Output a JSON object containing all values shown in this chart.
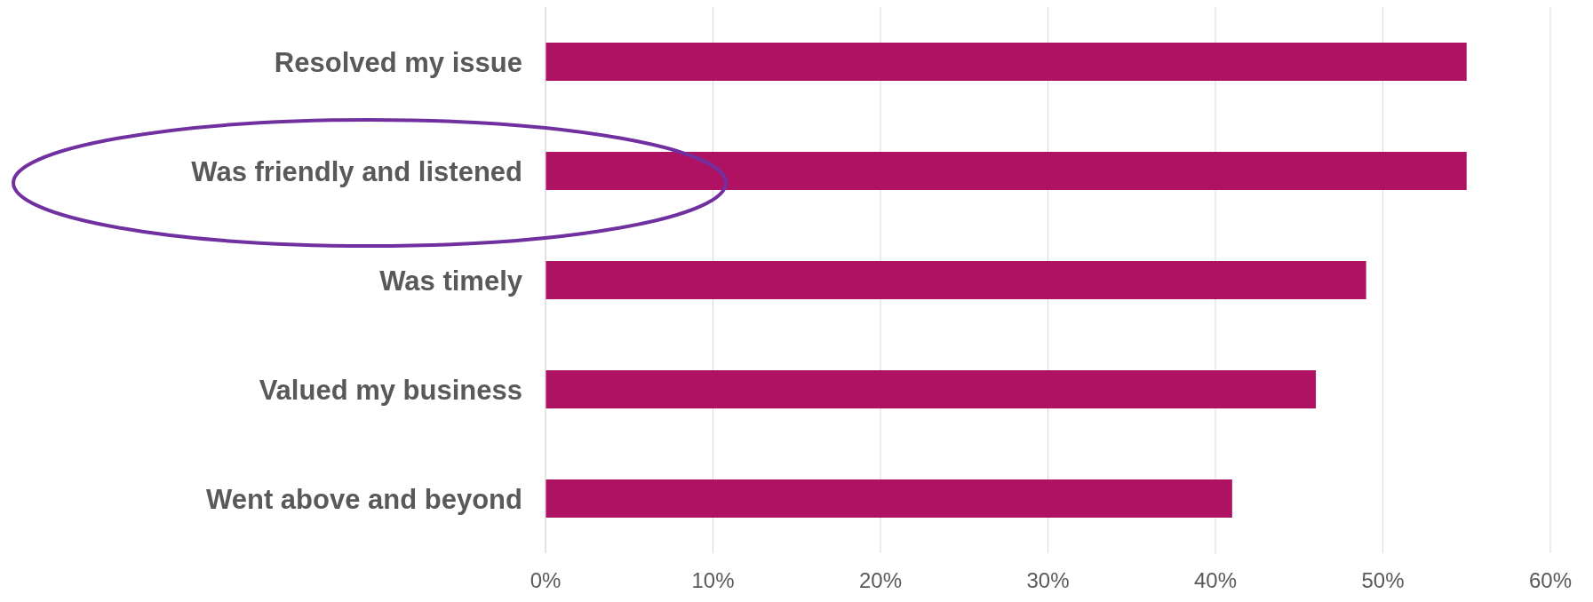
{
  "chart_data": {
    "type": "bar",
    "orientation": "horizontal",
    "categories": [
      "Resolved my issue",
      "Was friendly and listened",
      "Was timely",
      "Valued my business",
      "Went above and beyond"
    ],
    "values": [
      55,
      55,
      49,
      46,
      41
    ],
    "color": "#b01263",
    "xlim": [
      0,
      60
    ],
    "xticks": [
      {
        "value": 0,
        "label": "0%"
      },
      {
        "value": 10,
        "label": "10%"
      },
      {
        "value": 20,
        "label": "20%"
      },
      {
        "value": 30,
        "label": "30%"
      },
      {
        "value": 40,
        "label": "40%"
      },
      {
        "value": 50,
        "label": "50%"
      },
      {
        "value": 60,
        "label": "60%"
      }
    ],
    "grid": "x",
    "legend": false
  }
}
